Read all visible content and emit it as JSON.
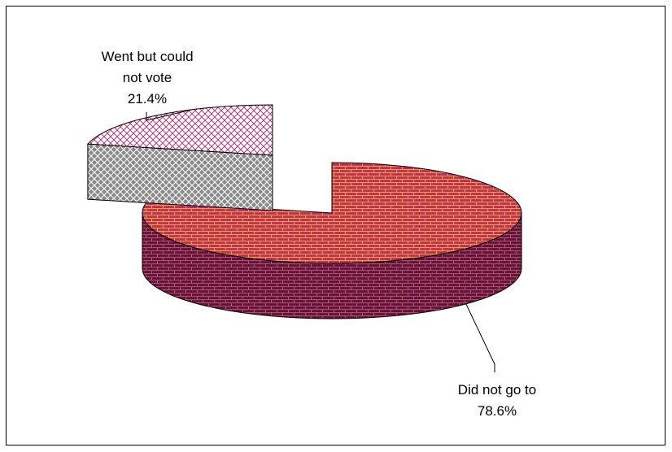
{
  "chart_data": {
    "type": "pie",
    "style": "3d-exploded",
    "title": "",
    "slices": [
      {
        "label_lines": [
          "Did not go to"
        ],
        "value": 78.6,
        "value_text": "78.6%",
        "fill": "#bb2a6b",
        "brick": "#f0a020",
        "side_fill": "#5a1440",
        "side_brick": "#b94a5a"
      },
      {
        "label_lines": [
          "Went but could",
          "not vote"
        ],
        "value": 21.4,
        "value_text": "21.4%",
        "fill": "#ffffff",
        "hatch": "#b03a78",
        "side_fill": "#8a8a8a",
        "side_hatch": "#ffffff"
      }
    ],
    "legend": "none",
    "grid": false
  }
}
